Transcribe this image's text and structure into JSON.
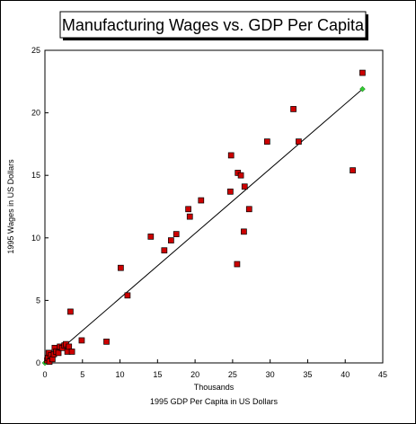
{
  "chart_data": {
    "type": "scatter",
    "title": "Manufacturing Wages vs. GDP Per Capita",
    "xlabel_units": "Thousands",
    "xlabel": "1995 GDP Per Capita in US Dollars",
    "ylabel": "1995 Wages in US Dollars",
    "xlim": [
      0,
      45
    ],
    "ylim": [
      0,
      25
    ],
    "xticks": [
      "0",
      "5",
      "10",
      "15",
      "20",
      "25",
      "30",
      "35",
      "40",
      "45"
    ],
    "yticks": [
      "0",
      "5",
      "10",
      "15",
      "20",
      "25"
    ],
    "grid": false,
    "legend": "none",
    "colors": {
      "marker_fill": "#cc0000",
      "marker_edge": "#000000",
      "trend_line": "#000000",
      "trend_end_marker": "#33cc33"
    },
    "series": [
      {
        "points": [
          [
            0.3,
            0.2
          ],
          [
            0.4,
            0.4
          ],
          [
            0.5,
            0.8
          ],
          [
            0.6,
            0.1
          ],
          [
            0.8,
            0.6
          ],
          [
            1.0,
            0.3
          ],
          [
            1.2,
            0.7
          ],
          [
            1.3,
            1.2
          ],
          [
            1.5,
            0.9
          ],
          [
            1.8,
            0.8
          ],
          [
            2.0,
            1.3
          ],
          [
            2.3,
            1.2
          ],
          [
            2.6,
            1.4
          ],
          [
            2.8,
            1.5
          ],
          [
            3.0,
            0.9
          ],
          [
            3.2,
            1.3
          ],
          [
            3.4,
            4.1
          ],
          [
            3.6,
            0.9
          ],
          [
            4.9,
            1.8
          ],
          [
            8.2,
            1.7
          ],
          [
            10.1,
            7.6
          ],
          [
            11.0,
            5.4
          ],
          [
            14.1,
            10.1
          ],
          [
            15.9,
            9.0
          ],
          [
            16.8,
            9.8
          ],
          [
            17.5,
            10.3
          ],
          [
            19.1,
            12.3
          ],
          [
            19.3,
            11.7
          ],
          [
            20.8,
            13.0
          ],
          [
            24.7,
            13.7
          ],
          [
            24.8,
            16.6
          ],
          [
            25.6,
            7.9
          ],
          [
            25.7,
            15.2
          ],
          [
            26.1,
            15.0
          ],
          [
            26.5,
            10.5
          ],
          [
            26.6,
            14.1
          ],
          [
            27.2,
            12.3
          ],
          [
            29.6,
            17.7
          ],
          [
            33.1,
            20.3
          ],
          [
            33.8,
            17.7
          ],
          [
            41.0,
            15.4
          ],
          [
            42.3,
            23.2
          ]
        ]
      }
    ],
    "trendline": {
      "x": [
        0,
        42.3
      ],
      "y": [
        0,
        21.9
      ]
    }
  }
}
